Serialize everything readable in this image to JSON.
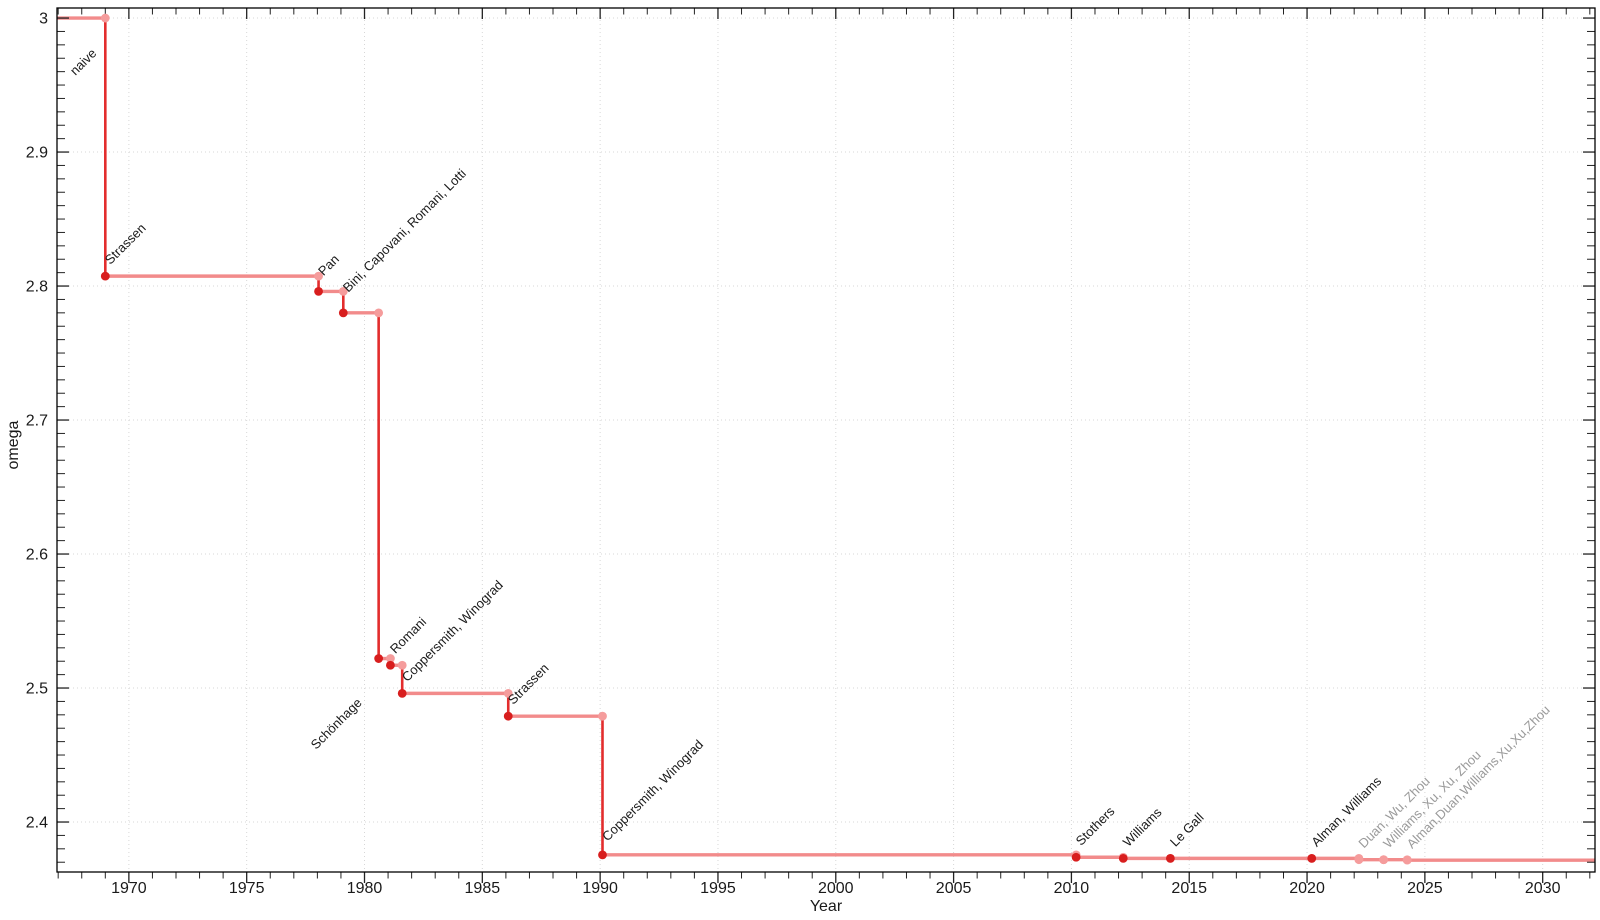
{
  "chart_data": {
    "type": "line",
    "subtype": "step",
    "title": "",
    "xlabel": "Year",
    "ylabel": "omega",
    "legend": "none",
    "grid": true,
    "xlim": [
      1966.95,
      2032.22
    ],
    "ylim": [
      2.3627,
      3.0075
    ],
    "x_major_ticks": [
      1970,
      1975,
      1980,
      1985,
      1990,
      1995,
      2000,
      2005,
      2010,
      2015,
      2020,
      2025,
      2030
    ],
    "x_tick_labels": [
      "1970",
      "1975",
      "1980",
      "1985",
      "1990",
      "1995",
      "2000",
      "2005",
      "2010",
      "2015",
      "2020",
      "2025",
      "2030"
    ],
    "x_minor_step": 1,
    "y_major_ticks": [
      2.4,
      2.5,
      2.6,
      2.7,
      2.8,
      2.9,
      3.0
    ],
    "y_tick_labels": [
      "2.4",
      "2.5",
      "2.6",
      "2.7",
      "2.8",
      "2.9",
      "3"
    ],
    "y_minor_step": 0.01,
    "colors": {
      "flat_line": "#f28b8b",
      "drop_line": "#e32d2d",
      "marker_light": "#f59c9c",
      "marker_dark": "#d81e1e",
      "label_black": "#1a1a1a",
      "label_gray": "#9a9a9a"
    },
    "series": {
      "start": {
        "year": 1966.95,
        "omega": 3.0
      },
      "end_year": 2032.22,
      "events": [
        {
          "year": 1969.0,
          "omega": 2.8074,
          "label": "Strassen",
          "side": "above",
          "emphasized": true
        },
        {
          "year": 1978.05,
          "omega": 2.796,
          "label": "Pan",
          "side": "above",
          "emphasized": true
        },
        {
          "year": 1979.1,
          "omega": 2.78,
          "label": "Bini, Capovani, Romani, Lotti",
          "side": "above",
          "emphasized": true
        },
        {
          "year": 1980.6,
          "omega": 2.522,
          "label": "Schönhage",
          "side": "below",
          "emphasized": true
        },
        {
          "year": 1981.1,
          "omega": 2.517,
          "label": "Romani",
          "side": "above",
          "emphasized": true
        },
        {
          "year": 1981.6,
          "omega": 2.496,
          "label": "Coppersmith, Winograd",
          "side": "above",
          "emphasized": true
        },
        {
          "year": 1986.1,
          "omega": 2.479,
          "label": "Strassen",
          "side": "above",
          "emphasized": true
        },
        {
          "year": 1990.1,
          "omega": 2.3755,
          "label": "Coppersmith, Winograd",
          "side": "above",
          "emphasized": true
        },
        {
          "year": 2010.2,
          "omega": 2.3737,
          "label": "Stothers",
          "side": "above",
          "emphasized": true
        },
        {
          "year": 2012.2,
          "omega": 2.372873,
          "label": "Williams",
          "side": "above",
          "emphasized": true
        },
        {
          "year": 2014.2,
          "omega": 2.3728639,
          "label": "Le Gall",
          "side": "above",
          "emphasized": true
        },
        {
          "year": 2020.2,
          "omega": 2.3728596,
          "label": "Alman, Williams",
          "side": "above",
          "emphasized": true
        },
        {
          "year": 2022.2,
          "omega": 2.37188,
          "label": "Duan, Wu, Zhou",
          "side": "above",
          "emphasized": false
        },
        {
          "year": 2023.25,
          "omega": 2.371866,
          "label": "Williams, Xu, Xu, Zhou",
          "side": "above",
          "emphasized": false
        },
        {
          "year": 2024.25,
          "omega": 2.371552,
          "label": "Alman,Duan,Williams,Xu,Xu,Zhou",
          "side": "above",
          "emphasized": false
        }
      ]
    },
    "extra_annotations": [
      {
        "label": "naive",
        "year": 1969.0,
        "omega": 3.0,
        "side": "below",
        "emphasized": true
      }
    ]
  }
}
